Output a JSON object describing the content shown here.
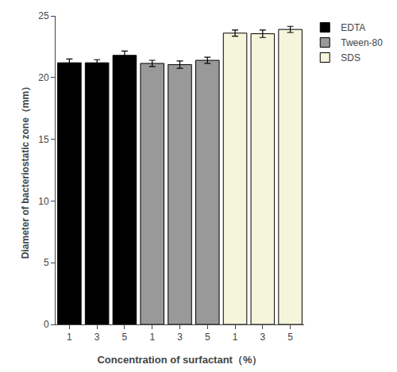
{
  "chart_data": {
    "type": "bar",
    "title": "",
    "xlabel": "Concentration of surfactant（%）",
    "ylabel": "Diameter of bacteriostatic zone（mm）",
    "categories": [
      "1",
      "3",
      "5",
      "1",
      "3",
      "5",
      "1",
      "3",
      "5"
    ],
    "series": [
      {
        "name": "EDTA",
        "color": "#000000",
        "values": [
          21.2,
          21.2,
          21.8,
          null,
          null,
          null,
          null,
          null,
          null
        ],
        "errors": [
          0.3,
          0.25,
          0.35,
          null,
          null,
          null,
          null,
          null,
          null
        ]
      },
      {
        "name": "Tween-80",
        "color": "#999999",
        "values": [
          null,
          null,
          null,
          21.15,
          21.05,
          21.4,
          null,
          null,
          null
        ],
        "errors": [
          null,
          null,
          null,
          0.25,
          0.3,
          0.25,
          null,
          null,
          null
        ]
      },
      {
        "name": "SDS",
        "color": "#f5f5dc",
        "values": [
          null,
          null,
          null,
          null,
          null,
          null,
          23.6,
          23.55,
          23.9
        ],
        "errors": [
          null,
          null,
          null,
          null,
          null,
          null,
          0.25,
          0.3,
          0.25
        ]
      }
    ],
    "ylim": [
      0,
      25
    ],
    "yticks": [
      0,
      5,
      10,
      15,
      20,
      25
    ],
    "grid": false,
    "legend": "upper right"
  }
}
